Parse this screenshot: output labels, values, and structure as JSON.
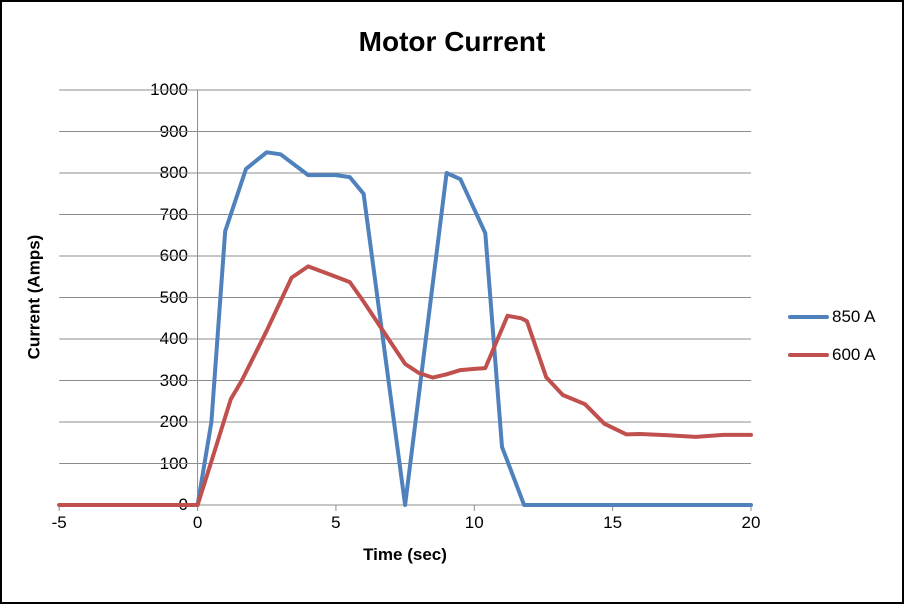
{
  "chart_data": {
    "type": "line",
    "title": "Motor Current",
    "xlabel": "Time (sec)",
    "ylabel": "Current (Amps)",
    "xlim": [
      -5,
      20
    ],
    "ylim": [
      0,
      1000
    ],
    "x_ticks": [
      -5,
      0,
      5,
      10,
      15,
      20
    ],
    "y_ticks": [
      0,
      100,
      200,
      300,
      400,
      500,
      600,
      700,
      800,
      900,
      1000
    ],
    "grid": "horizontal-only",
    "gridline_color": "#8c8c8c",
    "axis_color": "#8c8c8c",
    "legend_position": "right-outside",
    "series": [
      {
        "name": "850 A",
        "color": "#4F81BD",
        "points": [
          [
            -5,
            0
          ],
          [
            -4,
            0
          ],
          [
            -3,
            0
          ],
          [
            -2,
            0
          ],
          [
            -1,
            0
          ],
          [
            0,
            0
          ],
          [
            0.5,
            200
          ],
          [
            1,
            660
          ],
          [
            1.75,
            810
          ],
          [
            2.5,
            850
          ],
          [
            3,
            845
          ],
          [
            4,
            795
          ],
          [
            5,
            795
          ],
          [
            5.5,
            790
          ],
          [
            6,
            750
          ],
          [
            7.5,
            0
          ],
          [
            9,
            800
          ],
          [
            9.5,
            785
          ],
          [
            10.4,
            655
          ],
          [
            11,
            140
          ],
          [
            11.8,
            0
          ],
          [
            12,
            0
          ],
          [
            13,
            0
          ],
          [
            14,
            0
          ],
          [
            15,
            0
          ],
          [
            16,
            0
          ],
          [
            17,
            0
          ],
          [
            18,
            0
          ],
          [
            19,
            0
          ],
          [
            20,
            0
          ]
        ]
      },
      {
        "name": "600 A",
        "color": "#C0504D",
        "points": [
          [
            -5,
            0
          ],
          [
            -4,
            0
          ],
          [
            -3,
            0
          ],
          [
            -2,
            0
          ],
          [
            -1,
            0
          ],
          [
            0,
            0
          ],
          [
            0.5,
            105
          ],
          [
            1.2,
            255
          ],
          [
            1.6,
            300
          ],
          [
            2.5,
            420
          ],
          [
            3.4,
            548
          ],
          [
            4,
            575
          ],
          [
            5,
            550
          ],
          [
            5.5,
            537
          ],
          [
            6,
            490
          ],
          [
            7.5,
            340
          ],
          [
            8,
            318
          ],
          [
            8.5,
            307
          ],
          [
            9,
            315
          ],
          [
            9.5,
            325
          ],
          [
            10,
            328
          ],
          [
            10.4,
            330
          ],
          [
            11.2,
            456
          ],
          [
            11.7,
            450
          ],
          [
            11.9,
            443
          ],
          [
            12.6,
            308
          ],
          [
            13.2,
            265
          ],
          [
            14,
            243
          ],
          [
            14.7,
            196
          ],
          [
            15.5,
            170
          ],
          [
            16,
            171
          ],
          [
            17,
            168
          ],
          [
            18,
            164
          ],
          [
            19,
            169
          ],
          [
            20,
            169
          ]
        ]
      }
    ]
  }
}
